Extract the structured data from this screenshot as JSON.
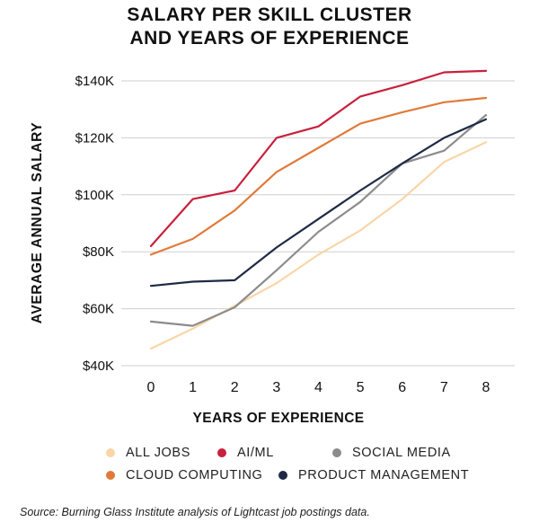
{
  "chart_data": {
    "type": "line",
    "title_lines": [
      "SALARY PER SKILL CLUSTER",
      "AND YEARS OF EXPERIENCE"
    ],
    "xlabel": "YEARS OF EXPERIENCE",
    "ylabel": "AVERAGE ANNUAL SALARY",
    "x": [
      0,
      1,
      2,
      3,
      4,
      5,
      6,
      7,
      8
    ],
    "x_tick_labels": [
      "0",
      "1",
      "2",
      "3",
      "4",
      "5",
      "6",
      "7",
      "8"
    ],
    "y_ticks": [
      40000,
      60000,
      80000,
      100000,
      120000,
      140000
    ],
    "y_tick_labels": [
      "$40K",
      "$60K",
      "$80K",
      "$100K",
      "$120K",
      "$140K"
    ],
    "ylim": [
      40000,
      140000
    ],
    "xlim": [
      0,
      8
    ],
    "grid": "horizontal",
    "legend_position": "bottom",
    "series": [
      {
        "name": "ALL JOBS",
        "color": "#f9d6a8",
        "values": [
          46000,
          53000,
          61000,
          69000,
          79000,
          87500,
          98500,
          111500,
          118500
        ]
      },
      {
        "name": "AI/ML",
        "color": "#c8203d",
        "values": [
          82000,
          98500,
          101500,
          120000,
          124000,
          134500,
          138500,
          143000,
          143500
        ]
      },
      {
        "name": "SOCIAL MEDIA",
        "color": "#8c8c8c",
        "values": [
          55500,
          54000,
          60500,
          73500,
          87000,
          97500,
          111000,
          115500,
          128000
        ]
      },
      {
        "name": "CLOUD COMPUTING",
        "color": "#e07a3a",
        "values": [
          79000,
          84500,
          94500,
          108000,
          116500,
          125000,
          129000,
          132500,
          134000
        ]
      },
      {
        "name": "PRODUCT MANAGEMENT",
        "color": "#1e2a45",
        "values": [
          68000,
          69500,
          70000,
          81500,
          91500,
          101500,
          111000,
          120000,
          126500
        ]
      }
    ]
  },
  "source": "Source: Burning Glass Institute analysis of Lightcast job postings data."
}
